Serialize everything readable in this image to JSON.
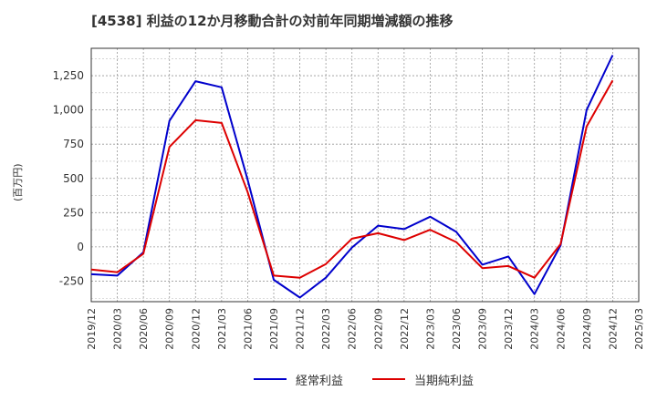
{
  "chart_data": {
    "type": "line",
    "title": "[4538]  利益の12か月移動合計の対前年同期増減額の推移",
    "ylabel": "(百万円)",
    "xlabel": "",
    "ylim": [
      -400,
      1450
    ],
    "yticks": [
      1250,
      1000,
      750,
      500,
      250,
      0,
      -250
    ],
    "ytick_labels": [
      "1,250",
      "1,000",
      "750",
      "500",
      "250",
      "0",
      "-250"
    ],
    "categories": [
      "2019/12",
      "2020/03",
      "2020/06",
      "2020/09",
      "2020/12",
      "2021/03",
      "2021/06",
      "2021/09",
      "2021/12",
      "2022/03",
      "2022/06",
      "2022/09",
      "2022/12",
      "2023/03",
      "2023/06",
      "2023/09",
      "2023/12",
      "2024/03",
      "2024/06",
      "2024/09",
      "2024/12",
      "2025/03"
    ],
    "series": [
      {
        "name": "経常利益",
        "color": "#0000cc",
        "values": [
          -200,
          -210,
          -40,
          920,
          1210,
          1165,
          490,
          -240,
          -370,
          -225,
          -5,
          155,
          130,
          220,
          110,
          -130,
          -70,
          -345,
          10,
          1000,
          1400,
          null
        ]
      },
      {
        "name": "当期純利益",
        "color": "#dd0000",
        "values": [
          -165,
          -185,
          -50,
          730,
          925,
          905,
          400,
          -210,
          -225,
          -125,
          60,
          100,
          50,
          125,
          35,
          -155,
          -140,
          -225,
          20,
          880,
          1215,
          null
        ]
      }
    ],
    "grid": true,
    "legend_position": "bottom-center"
  }
}
